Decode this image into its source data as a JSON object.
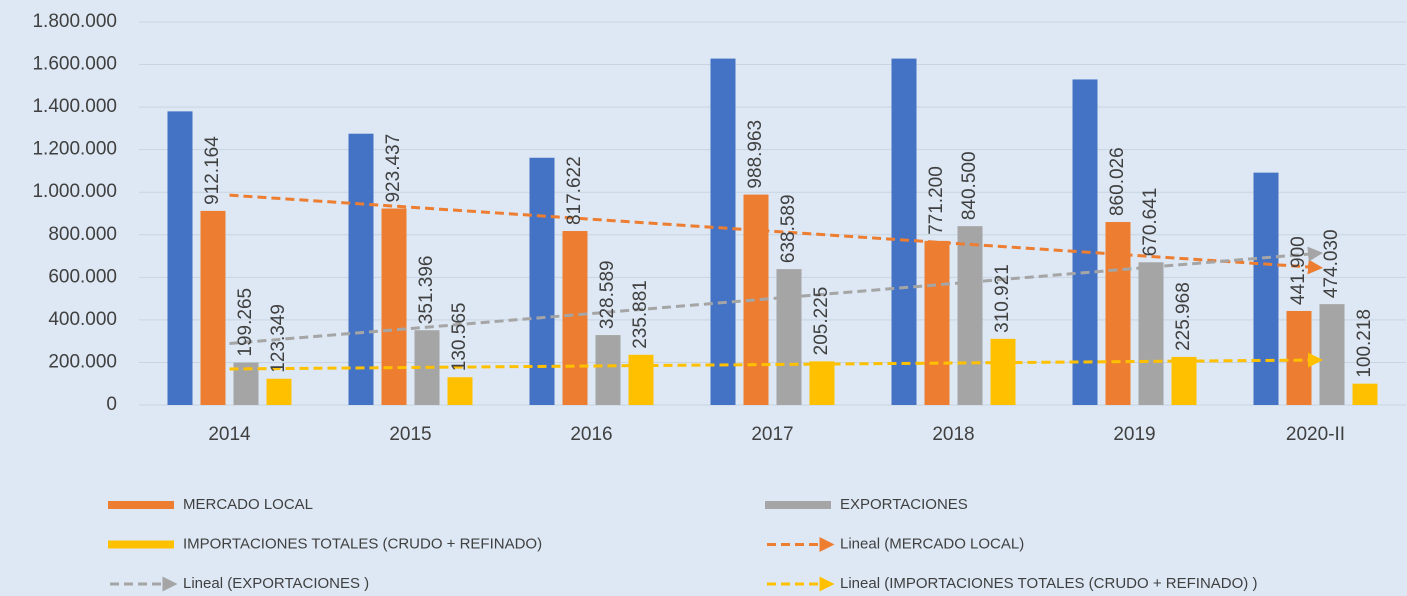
{
  "chart_data": {
    "type": "bar",
    "categories": [
      "2014",
      "2015",
      "2016",
      "2017",
      "2018",
      "2019",
      "2020-II"
    ],
    "series": [
      {
        "color": "#4472c4",
        "values": [
          1380000,
          1275000,
          1162000,
          1628000,
          1628000,
          1530000,
          1092000
        ]
      },
      {
        "name": "MERCADO LOCAL",
        "color": "#ed7d31",
        "values": [
          912164,
          923437,
          817622,
          988963,
          771200,
          860026,
          441900
        ],
        "value_labels": [
          "912.164",
          "923.437",
          "817.622",
          "988.963",
          "771.200",
          "860.026",
          "441.900"
        ],
        "trendline": "Lineal (MERCADO LOCAL)"
      },
      {
        "name": "EXPORTACIONES",
        "color": "#a5a5a5",
        "values": [
          199265,
          351396,
          328589,
          638589,
          840500,
          670641,
          474030
        ],
        "value_labels": [
          "199.265",
          "351.396",
          "328.589",
          "638.589",
          "840.500",
          "670.641",
          "474.030"
        ],
        "trendline": "Lineal (EXPORTACIONES )"
      },
      {
        "name": "IMPORTACIONES TOTALES (CRUDO + REFINADO)",
        "color": "#ffc000",
        "values": [
          123349,
          130565,
          235881,
          205225,
          310921,
          225968,
          100218
        ],
        "value_labels": [
          "123.349",
          "130.565",
          "235.881",
          "205.225",
          "310.921",
          "225.968",
          "100.218"
        ],
        "trendline": "Lineal (IMPORTACIONES TOTALES (CRUDO + REFINADO) )"
      }
    ],
    "ylim": [
      0,
      1800000
    ],
    "yticks": [
      0,
      {
        "value": 200000,
        "label": "200.000"
      },
      {
        "value": 400000,
        "label": "400.000"
      },
      {
        "value": 600000,
        "label": "600.000"
      },
      {
        "value": 800000,
        "label": "800.000"
      },
      {
        "value": 1000000,
        "label": "1.000.000"
      },
      {
        "value": 1200000,
        "label": "1.200.000"
      },
      {
        "value": 1400000,
        "label": "1.400.000"
      },
      {
        "value": 1600000,
        "label": "1.600.000"
      },
      {
        "value": 1800000,
        "label": "1.800.000"
      }
    ],
    "grid": true,
    "legend": "bottom"
  }
}
